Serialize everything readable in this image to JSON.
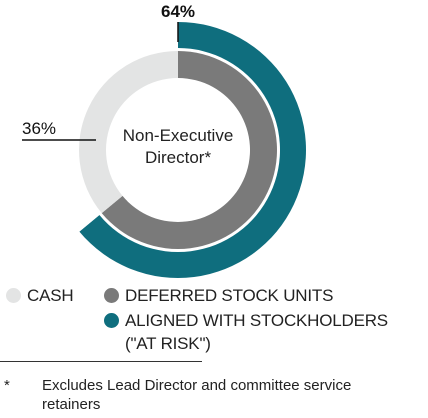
{
  "chart_data": {
    "type": "pie",
    "center_label": "Non-Executive\nDirector*",
    "rings": [
      {
        "name": "outer",
        "slices": [
          {
            "label": "ALIGNED WITH STOCKHOLDERS\n(\"AT RISK\")",
            "value": 64,
            "color": "#0f6e7e",
            "data_label": "64%"
          },
          {
            "label": "",
            "value": 36,
            "color": "#ffffff",
            "data_label": ""
          }
        ]
      },
      {
        "name": "inner",
        "slices": [
          {
            "label": "DEFERRED STOCK UNITS",
            "value": 64,
            "color": "#7a7a7a",
            "data_label": ""
          },
          {
            "label": "CASH",
            "value": 36,
            "color": "#e3e4e4",
            "data_label": "36%"
          }
        ]
      }
    ],
    "legend": [
      {
        "label": "CASH",
        "color": "#e3e4e4"
      },
      {
        "label": "DEFERRED STOCK UNITS",
        "color": "#7a7a7a"
      },
      {
        "label": "ALIGNED WITH STOCKHOLDERS\n(\"AT RISK\")",
        "color": "#0f6e7e"
      }
    ]
  },
  "footnote": {
    "marker": "*",
    "text": "Excludes Lead Director and committee service retainers"
  }
}
